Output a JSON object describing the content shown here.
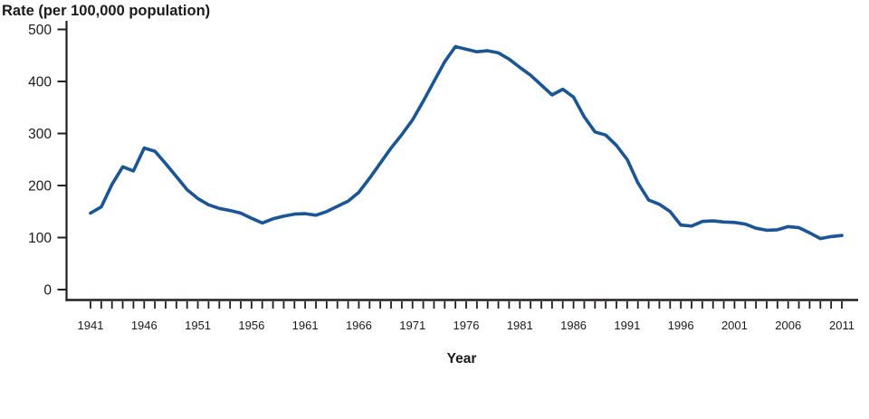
{
  "chart_data": {
    "type": "line",
    "title": "Rate (per 100,000 population)",
    "xlabel": "Year",
    "ylabel": "Rate (per 100,000 population)",
    "grid": "off",
    "legend": "none",
    "ylim": [
      0,
      500
    ],
    "y_ticks": [
      0,
      100,
      200,
      300,
      400,
      500
    ],
    "x_range": [
      1941,
      2011
    ],
    "x_minor_tick_interval": 1,
    "x_labeled_ticks": [
      1941,
      1946,
      1951,
      1956,
      1961,
      1966,
      1971,
      1976,
      1981,
      1986,
      1991,
      1996,
      2001,
      2006,
      2011
    ],
    "colors": {
      "line": "#1a5596",
      "axis": "#231f20",
      "text": "#1a1a1a"
    },
    "series": [
      {
        "name": "Rate per 100,000 population",
        "x": [
          1941,
          1942,
          1943,
          1944,
          1945,
          1946,
          1947,
          1948,
          1949,
          1950,
          1951,
          1952,
          1953,
          1954,
          1955,
          1956,
          1957,
          1958,
          1959,
          1960,
          1961,
          1962,
          1963,
          1964,
          1965,
          1966,
          1967,
          1968,
          1969,
          1970,
          1971,
          1972,
          1973,
          1974,
          1975,
          1976,
          1977,
          1978,
          1979,
          1980,
          1981,
          1982,
          1983,
          1984,
          1985,
          1986,
          1987,
          1988,
          1989,
          1990,
          1991,
          1992,
          1993,
          1994,
          1995,
          1996,
          1997,
          1998,
          1999,
          2000,
          2001,
          2002,
          2003,
          2004,
          2005,
          2006,
          2007,
          2008,
          2009,
          2010,
          2011
        ],
        "values": [
          147,
          159,
          202,
          236,
          228,
          272,
          266,
          242,
          217,
          192,
          175,
          163,
          156,
          152,
          147,
          137,
          128,
          136,
          141,
          145,
          146,
          143,
          150,
          160,
          170,
          187,
          214,
          243,
          272,
          298,
          326,
          362,
          400,
          438,
          467,
          462,
          457,
          459,
          455,
          443,
          427,
          412,
          393,
          374,
          385,
          370,
          332,
          303,
          297,
          277,
          250,
          205,
          172,
          164,
          150,
          124,
          122,
          131,
          132,
          130,
          129,
          126,
          118,
          114,
          115,
          121,
          119,
          109,
          98,
          102,
          104
        ]
      }
    ]
  }
}
